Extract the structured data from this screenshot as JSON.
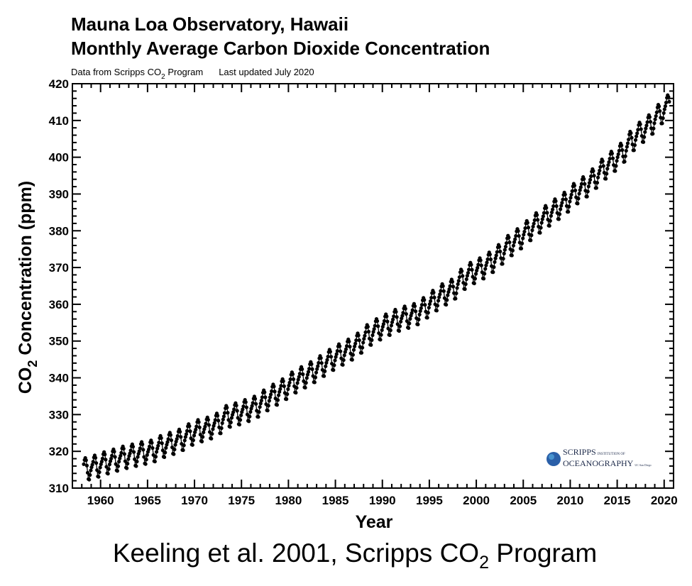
{
  "title_line1": "Mauna Loa Observatory, Hawaii",
  "title_line2": "Monthly Average Carbon Dioxide Concentration",
  "subtitle": {
    "source_prefix": "Data from Scripps CO",
    "source_sub": "2",
    "source_suffix": " Program",
    "updated": "Last updated July 2020"
  },
  "caption": {
    "prefix": "Keeling et al. 2001, Scripps CO",
    "sub": "2",
    "suffix": " Program"
  },
  "logo": {
    "line1": "SCRIPPS",
    "line1_small": "INSTITUTION OF",
    "line2": "OCEANOGRAPHY",
    "line2_small": "UC San Diego"
  },
  "chart_data": {
    "type": "line",
    "title": "Monthly Average Carbon Dioxide Concentration",
    "xlabel": "Year",
    "ylabel": {
      "prefix": "CO",
      "sub": "2",
      "suffix": " Concentration (ppm)"
    },
    "xlim": [
      1957,
      2021
    ],
    "ylim": [
      310,
      420
    ],
    "x_ticks": [
      1960,
      1965,
      1970,
      1975,
      1980,
      1985,
      1990,
      1995,
      2000,
      2005,
      2010,
      2015,
      2020
    ],
    "y_ticks": [
      310,
      320,
      330,
      340,
      350,
      360,
      370,
      380,
      390,
      400,
      410,
      420
    ],
    "grid": false,
    "markers": "filled circles",
    "line_color": "#000000",
    "start": "1958-03",
    "end": "2020-07",
    "annual_mean_ppm": {
      "1958": 315.3,
      "1959": 315.98,
      "1960": 316.91,
      "1961": 317.64,
      "1962": 318.45,
      "1963": 318.99,
      "1964": 319.62,
      "1965": 320.04,
      "1966": 321.37,
      "1967": 322.18,
      "1968": 323.05,
      "1969": 324.62,
      "1970": 325.68,
      "1971": 326.32,
      "1972": 327.46,
      "1973": 329.68,
      "1974": 330.19,
      "1975": 331.12,
      "1976": 332.03,
      "1977": 333.84,
      "1978": 335.41,
      "1979": 336.84,
      "1980": 338.76,
      "1981": 340.12,
      "1982": 341.48,
      "1983": 343.15,
      "1984": 344.87,
      "1985": 346.35,
      "1986": 347.61,
      "1987": 349.31,
      "1988": 351.69,
      "1989": 353.2,
      "1990": 354.45,
      "1991": 355.7,
      "1992": 356.54,
      "1993": 357.21,
      "1994": 358.96,
      "1995": 360.97,
      "1996": 362.74,
      "1997": 363.88,
      "1998": 366.84,
      "1999": 368.54,
      "2000": 369.71,
      "2001": 371.32,
      "2002": 373.45,
      "2003": 375.98,
      "2004": 377.7,
      "2005": 379.98,
      "2006": 382.09,
      "2007": 384.02,
      "2008": 385.83,
      "2009": 387.64,
      "2010": 390.1,
      "2011": 391.85,
      "2012": 394.06,
      "2013": 396.74,
      "2014": 398.81,
      "2015": 401.01,
      "2016": 404.41,
      "2017": 406.76,
      "2018": 408.72,
      "2019": 411.66,
      "2020": 414.2
    },
    "seasonal_cycle_ppm_jan_to_dec": [
      0.0,
      0.65,
      1.4,
      2.5,
      3.0,
      2.3,
      0.8,
      -1.2,
      -3.0,
      -3.2,
      -2.0,
      -0.8
    ]
  }
}
